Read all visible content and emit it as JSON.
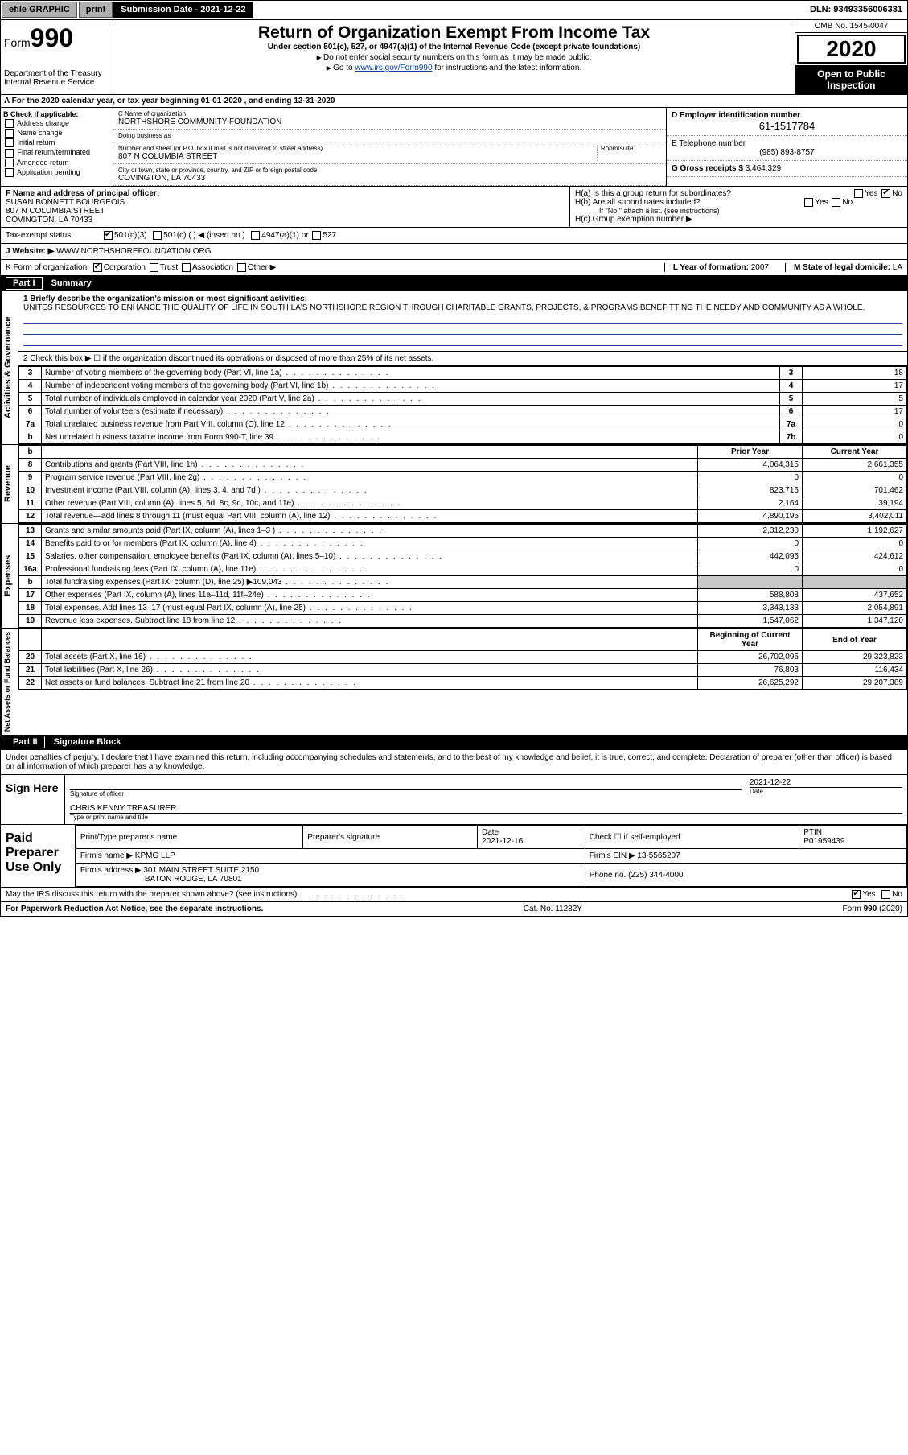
{
  "topbar": {
    "efile": "efile GRAPHIC",
    "print": "print",
    "sub_label": "Submission Date",
    "sub_date": "2021-12-22",
    "dln_label": "DLN:",
    "dln": "93493356006331"
  },
  "header": {
    "form_prefix": "Form",
    "form_num": "990",
    "dept1": "Department of the Treasury",
    "dept2": "Internal Revenue Service",
    "title": "Return of Organization Exempt From Income Tax",
    "subtitle": "Under section 501(c), 527, or 4947(a)(1) of the Internal Revenue Code (except private foundations)",
    "note1": "Do not enter social security numbers on this form as it may be made public.",
    "note2_pre": "Go to ",
    "note2_link": "www.irs.gov/Form990",
    "note2_post": " for instructions and the latest information.",
    "omb": "OMB No. 1545-0047",
    "year": "2020",
    "open1": "Open to Public",
    "open2": "Inspection"
  },
  "rowA": "A For the 2020 calendar year, or tax year beginning 01-01-2020    , and ending 12-31-2020",
  "colB": {
    "hdr": "B Check if applicable:",
    "opts": [
      "Address change",
      "Name change",
      "Initial return",
      "Final return/terminated",
      "Amended return",
      "Application pending"
    ]
  },
  "colC": {
    "name_lbl": "C Name of organization",
    "name": "NORTHSHORE COMMUNITY FOUNDATION",
    "dba_lbl": "Doing business as",
    "dba": "",
    "addr_lbl": "Number and street (or P.O. box if mail is not delivered to street address)",
    "room_lbl": "Room/suite",
    "addr": "807 N COLUMBIA STREET",
    "city_lbl": "City or town, state or province, country, and ZIP or foreign postal code",
    "city": "COVINGTON, LA  70433"
  },
  "colD": {
    "ein_lbl": "D Employer identification number",
    "ein": "61-1517784",
    "tel_lbl": "E Telephone number",
    "tel": "(985) 893-8757",
    "gross_lbl": "G Gross receipts $",
    "gross": "3,464,329"
  },
  "rowF": {
    "f_lbl": "F  Name and address of principal officer:",
    "f_name": "SUSAN BONNETT BOURGEOIS",
    "f_addr1": "807 N COLUMBIA STREET",
    "f_addr2": "COVINGTON, LA  70433",
    "ha": "H(a)  Is this a group return for subordinates?",
    "hb": "H(b)  Are all subordinates included?",
    "hb_note": "If \"No,\" attach a list. (see instructions)",
    "hc": "H(c)  Group exemption number ▶"
  },
  "status": {
    "lbl": "Tax-exempt status:",
    "o1": "501(c)(3)",
    "o2": "501(c) (  ) ◀ (insert no.)",
    "o3": "4947(a)(1) or",
    "o4": "527"
  },
  "website": {
    "lbl": "J  Website: ▶",
    "val": "WWW.NORTHSHOREFOUNDATION.ORG"
  },
  "korg": {
    "lbl": "K Form of organization:",
    "o1": "Corporation",
    "o2": "Trust",
    "o3": "Association",
    "o4": "Other ▶",
    "l_lbl": "L Year of formation:",
    "l_val": "2007",
    "m_lbl": "M State of legal domicile:",
    "m_val": "LA"
  },
  "part1": {
    "num": "Part I",
    "title": "Summary"
  },
  "mission": {
    "line1_lbl": "1  Briefly describe the organization's mission or most significant activities:",
    "text": "UNITES RESOURCES TO ENHANCE THE QUALITY OF LIFE IN SOUTH LA'S NORTHSHORE REGION THROUGH CHARITABLE GRANTS, PROJECTS, & PROGRAMS BENEFITTING THE NEEDY AND COMMUNITY AS A WHOLE."
  },
  "gov": {
    "line2": "2   Check this box ▶ ☐  if the organization discontinued its operations or disposed of more than 25% of its net assets.",
    "rows": [
      {
        "n": "3",
        "d": "Number of voting members of the governing body (Part VI, line 1a)",
        "box": "3",
        "v": "18"
      },
      {
        "n": "4",
        "d": "Number of independent voting members of the governing body (Part VI, line 1b)",
        "box": "4",
        "v": "17"
      },
      {
        "n": "5",
        "d": "Total number of individuals employed in calendar year 2020 (Part V, line 2a)",
        "box": "5",
        "v": "5"
      },
      {
        "n": "6",
        "d": "Total number of volunteers (estimate if necessary)",
        "box": "6",
        "v": "17"
      },
      {
        "n": "7a",
        "d": "Total unrelated business revenue from Part VIII, column (C), line 12",
        "box": "7a",
        "v": "0"
      },
      {
        "n": "b",
        "d": "Net unrelated business taxable income from Form 990-T, line 39",
        "box": "7b",
        "v": "0"
      }
    ]
  },
  "rev": {
    "side": "Revenue",
    "hdr_prior": "Prior Year",
    "hdr_curr": "Current Year",
    "rows": [
      {
        "n": "8",
        "d": "Contributions and grants (Part VIII, line 1h)",
        "p": "4,064,315",
        "c": "2,661,355"
      },
      {
        "n": "9",
        "d": "Program service revenue (Part VIII, line 2g)",
        "p": "0",
        "c": "0"
      },
      {
        "n": "10",
        "d": "Investment income (Part VIII, column (A), lines 3, 4, and 7d )",
        "p": "823,716",
        "c": "701,462"
      },
      {
        "n": "11",
        "d": "Other revenue (Part VIII, column (A), lines 5, 6d, 8c, 9c, 10c, and 11e)",
        "p": "2,164",
        "c": "39,194"
      },
      {
        "n": "12",
        "d": "Total revenue—add lines 8 through 11 (must equal Part VIII, column (A), line 12)",
        "p": "4,890,195",
        "c": "3,402,011"
      }
    ]
  },
  "exp": {
    "side": "Expenses",
    "rows": [
      {
        "n": "13",
        "d": "Grants and similar amounts paid (Part IX, column (A), lines 1–3 )",
        "p": "2,312,230",
        "c": "1,192,627"
      },
      {
        "n": "14",
        "d": "Benefits paid to or for members (Part IX, column (A), line 4)",
        "p": "0",
        "c": "0"
      },
      {
        "n": "15",
        "d": "Salaries, other compensation, employee benefits (Part IX, column (A), lines 5–10)",
        "p": "442,095",
        "c": "424,612"
      },
      {
        "n": "16a",
        "d": "Professional fundraising fees (Part IX, column (A), line 11e)",
        "p": "0",
        "c": "0"
      },
      {
        "n": "b",
        "d": "Total fundraising expenses (Part IX, column (D), line 25) ▶109,043",
        "p": "",
        "c": "",
        "shade": true
      },
      {
        "n": "17",
        "d": "Other expenses (Part IX, column (A), lines 11a–11d, 11f–24e)",
        "p": "588,808",
        "c": "437,652"
      },
      {
        "n": "18",
        "d": "Total expenses. Add lines 13–17 (must equal Part IX, column (A), line 25)",
        "p": "3,343,133",
        "c": "2,054,891"
      },
      {
        "n": "19",
        "d": "Revenue less expenses. Subtract line 18 from line 12",
        "p": "1,547,062",
        "c": "1,347,120"
      }
    ]
  },
  "net": {
    "side": "Net Assets or Fund Balances",
    "hdr_beg": "Beginning of Current Year",
    "hdr_end": "End of Year",
    "rows": [
      {
        "n": "20",
        "d": "Total assets (Part X, line 16)",
        "p": "26,702,095",
        "c": "29,323,823"
      },
      {
        "n": "21",
        "d": "Total liabilities (Part X, line 26)",
        "p": "76,803",
        "c": "116,434"
      },
      {
        "n": "22",
        "d": "Net assets or fund balances. Subtract line 21 from line 20",
        "p": "26,625,292",
        "c": "29,207,389"
      }
    ]
  },
  "part2": {
    "num": "Part II",
    "title": "Signature Block"
  },
  "sig": {
    "decl": "Under penalties of perjury, I declare that I have examined this return, including accompanying schedules and statements, and to the best of my knowledge and belief, it is true, correct, and complete. Declaration of preparer (other than officer) is based on all information of which preparer has any knowledge.",
    "sign_here": "Sign Here",
    "officer_sig_lbl": "Signature of officer",
    "date_lbl": "Date",
    "date": "2021-12-22",
    "officer_name": "CHRIS KENNY  TREASURER",
    "officer_name_lbl": "Type or print name and title"
  },
  "paid": {
    "lbl": "Paid Preparer Use Only",
    "prep_name_lbl": "Print/Type preparer's name",
    "prep_sig_lbl": "Preparer's signature",
    "date_lbl": "Date",
    "date": "2021-12-16",
    "check_lbl": "Check ☐ if self-employed",
    "ptin_lbl": "PTIN",
    "ptin": "P01959439",
    "firm_name_lbl": "Firm's name     ▶",
    "firm_name": "KPMG LLP",
    "firm_ein_lbl": "Firm's EIN ▶",
    "firm_ein": "13-5565207",
    "firm_addr_lbl": "Firm's address ▶",
    "firm_addr1": "301 MAIN STREET SUITE 2150",
    "firm_addr2": "BATON ROUGE, LA  70801",
    "phone_lbl": "Phone no.",
    "phone": "(225) 344-4000"
  },
  "discuss": "May the IRS discuss this return with the preparer shown above? (see instructions)",
  "footer": {
    "pra": "For Paperwork Reduction Act Notice, see the separate instructions.",
    "cat": "Cat. No. 11282Y",
    "form": "Form 990 (2020)"
  },
  "colors": {
    "link": "#0645ad",
    "rule": "#2040a0",
    "shade": "#c8c8c8",
    "btn_bg": "#b0b0b0"
  }
}
